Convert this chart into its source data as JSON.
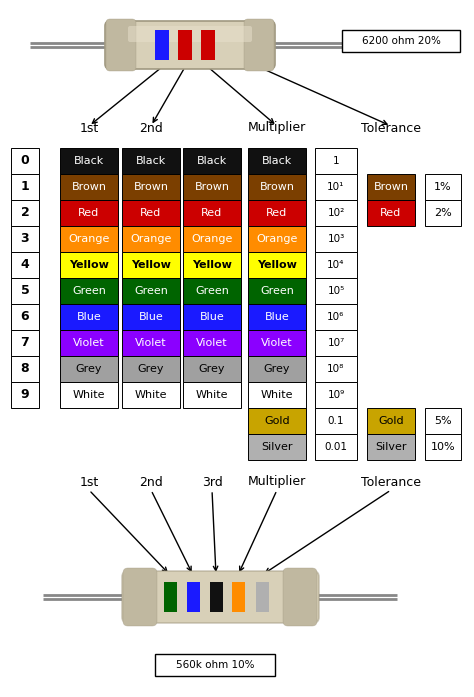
{
  "bg_color": "#ffffff",
  "colors": {
    "Black": "#111111",
    "Brown": "#7B3F00",
    "Red": "#CC0000",
    "Orange": "#FF8C00",
    "Yellow": "#FFFF00",
    "Green": "#006400",
    "Blue": "#1a1aff",
    "Violet": "#8B00FF",
    "Grey": "#A0A0A0",
    "White": "#FFFFFF",
    "Gold": "#C8A400",
    "Silver": "#B0B0B0"
  },
  "text_colors": {
    "Black": "#FFFFFF",
    "Brown": "#FFFFFF",
    "Red": "#FFFFFF",
    "Orange": "#FFFFFF",
    "Yellow": "#000000",
    "Green": "#FFFFFF",
    "Blue": "#FFFFFF",
    "Violet": "#FFFFFF",
    "Grey": "#000000",
    "White": "#000000",
    "Gold": "#000000",
    "Silver": "#000000"
  },
  "digit_bands": [
    "Black",
    "Brown",
    "Red",
    "Orange",
    "Yellow",
    "Green",
    "Blue",
    "Violet",
    "Grey",
    "White"
  ],
  "digits": [
    0,
    1,
    2,
    3,
    4,
    5,
    6,
    7,
    8,
    9
  ],
  "multiplier_values": [
    "1",
    "10¹",
    "10²",
    "10³",
    "10⁴",
    "10⁵",
    "10⁶",
    "10⁷",
    "10⁸",
    "10⁹",
    "0.1",
    "0.01"
  ],
  "resistor1_label": "6200 ohm 20%",
  "resistor1_bands": [
    "Blue",
    "Red",
    "Red"
  ],
  "resistor2_label": "560k ohm 10%",
  "resistor2_bands": [
    "Green",
    "Blue",
    "Black",
    "Orange",
    "Silver"
  ]
}
